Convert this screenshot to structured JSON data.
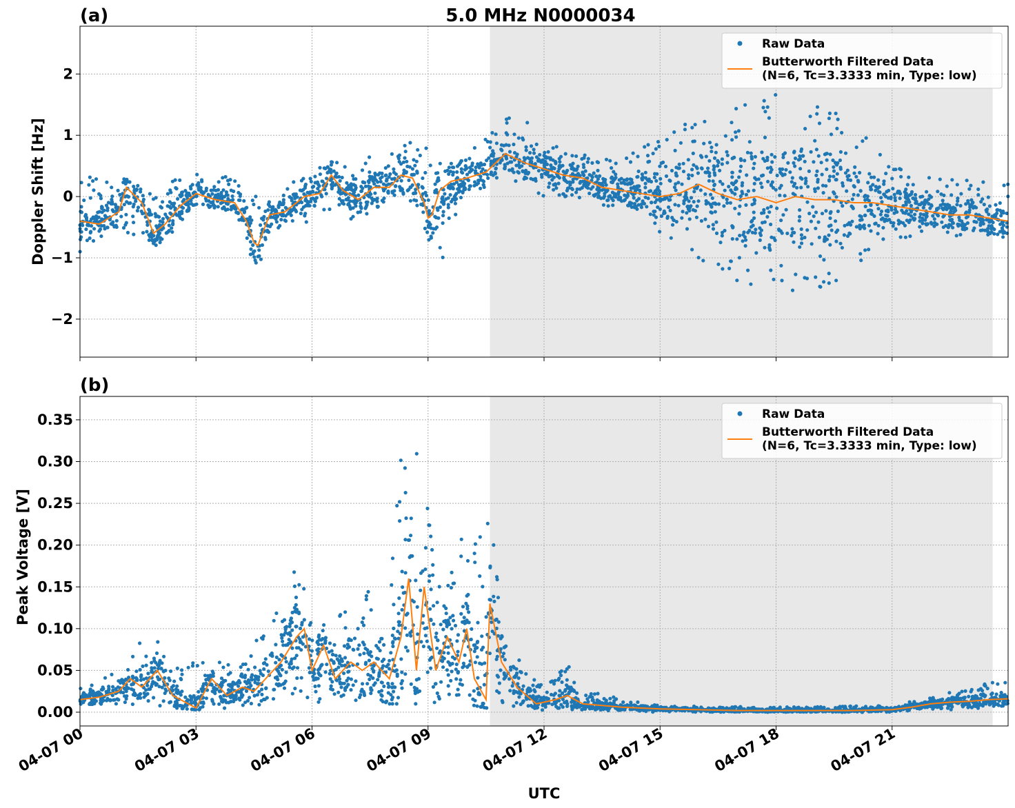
{
  "figure": {
    "title": "5.0 MHz N0000034",
    "xlabel": "UTC",
    "x_tick_labels": [
      "04-07 00",
      "04-07 03",
      "04-07 06",
      "04-07 09",
      "04-07 12",
      "04-07 15",
      "04-07 18",
      "04-07 21"
    ],
    "x_range_hours": [
      0,
      24
    ],
    "shaded_interval_hours": [
      10.6,
      23.6
    ],
    "colors": {
      "raw": "#1f77b4",
      "filtered": "#ff7f0e",
      "shade": "#e8e8e8",
      "grid": "#b0b0b0"
    },
    "legend": {
      "raw_label": "Raw Data",
      "filtered_label_line1": "Butterworth Filtered Data",
      "filtered_label_line2": "(N=6, Tc=3.3333 min, Type: low)",
      "placement": "upper right"
    }
  },
  "chart_data": [
    {
      "type": "scatter",
      "panel_label": "(a)",
      "ylabel": "Doppler Shift [Hz]",
      "ylim": [
        -2.62,
        2.78
      ],
      "yticks": [
        -2,
        -1,
        0,
        1,
        2
      ],
      "ytick_labels": [
        "−2",
        "−1",
        "0",
        "1",
        "2"
      ],
      "grid": true,
      "series": [
        {
          "name": "Butterworth Filtered Data",
          "type": "line",
          "x_hours": [
            0,
            0.5,
            1.0,
            1.2,
            1.6,
            1.9,
            2.2,
            2.6,
            3.0,
            3.5,
            4.0,
            4.3,
            4.5,
            4.6,
            4.9,
            5.3,
            5.8,
            6.2,
            6.5,
            6.8,
            7.2,
            7.6,
            8.0,
            8.3,
            8.6,
            8.9,
            9.0,
            9.1,
            9.3,
            9.6,
            10.0,
            10.5,
            11.0,
            11.5,
            12.0,
            12.5,
            13.0,
            13.5,
            14.0,
            14.5,
            15.0,
            15.5,
            16.0,
            16.5,
            17.0,
            17.5,
            18.0,
            18.5,
            19.0,
            19.5,
            20.0,
            20.5,
            21.0,
            21.5,
            22.0,
            22.5,
            23.0,
            23.5,
            24.0
          ],
          "y": [
            -0.4,
            -0.45,
            -0.25,
            0.15,
            -0.1,
            -0.6,
            -0.45,
            -0.15,
            0.05,
            -0.05,
            -0.1,
            -0.4,
            -0.75,
            -0.8,
            -0.3,
            -0.25,
            0.0,
            0.05,
            0.35,
            0.1,
            -0.05,
            0.15,
            0.15,
            0.35,
            0.3,
            -0.1,
            -0.35,
            -0.3,
            0.1,
            0.25,
            0.3,
            0.4,
            0.7,
            0.55,
            0.45,
            0.35,
            0.3,
            0.15,
            0.1,
            0.05,
            0.0,
            0.05,
            0.2,
            0.05,
            -0.05,
            0.0,
            -0.1,
            0.0,
            -0.05,
            -0.05,
            -0.1,
            -0.1,
            -0.15,
            -0.2,
            -0.25,
            -0.3,
            -0.3,
            -0.35,
            -0.4
          ]
        }
      ],
      "raw_data_envelope": {
        "name": "Raw Data",
        "x_hours": [
          0,
          1,
          2,
          3,
          4,
          4.6,
          5,
          6,
          6.5,
          7,
          8,
          8.4,
          9,
          9.2,
          10,
          10.6,
          11,
          11.5,
          12,
          13,
          14,
          15,
          16,
          17,
          18,
          19,
          19.5,
          20,
          21,
          22,
          23,
          24
        ],
        "y_low": [
          -0.9,
          -0.6,
          -0.8,
          -0.3,
          -0.3,
          -1.3,
          -0.6,
          -0.4,
          -0.2,
          -0.4,
          -0.2,
          -0.1,
          -0.6,
          -1.6,
          0.0,
          0.2,
          0.3,
          0.2,
          0.0,
          -0.1,
          -0.2,
          -0.6,
          -1.0,
          -1.4,
          -1.6,
          -1.6,
          -1.5,
          -1.2,
          -0.7,
          -0.6,
          -0.7,
          -0.7
        ],
        "y_high": [
          0.4,
          0.3,
          0.2,
          0.4,
          0.3,
          0.0,
          0.1,
          0.4,
          0.6,
          0.6,
          0.7,
          1.2,
          0.9,
          0.5,
          0.8,
          1.0,
          1.3,
          1.3,
          0.9,
          0.7,
          0.6,
          1.0,
          1.4,
          1.5,
          1.7,
          1.6,
          1.5,
          1.2,
          0.5,
          0.3,
          0.3,
          0.3
        ]
      }
    },
    {
      "type": "scatter",
      "panel_label": "(b)",
      "ylabel": "Peak Voltage [V]",
      "ylim": [
        -0.0165,
        0.378
      ],
      "yticks": [
        0.0,
        0.05,
        0.1,
        0.15,
        0.2,
        0.25,
        0.3,
        0.35
      ],
      "ytick_labels": [
        "0.00",
        "0.05",
        "0.10",
        "0.15",
        "0.20",
        "0.25",
        "0.30",
        "0.35"
      ],
      "grid": true,
      "series": [
        {
          "name": "Butterworth Filtered Data",
          "type": "line",
          "x_hours": [
            0,
            0.5,
            1.0,
            1.3,
            1.6,
            2.0,
            2.4,
            2.8,
            3.0,
            3.4,
            3.8,
            4.2,
            4.5,
            4.8,
            5.2,
            5.6,
            5.8,
            6.0,
            6.3,
            6.6,
            7.0,
            7.3,
            7.6,
            8.0,
            8.3,
            8.5,
            8.7,
            8.9,
            9.2,
            9.5,
            9.8,
            10.0,
            10.2,
            10.5,
            10.6,
            10.9,
            11.3,
            11.8,
            12.3,
            12.6,
            13.0,
            13.5,
            14.0,
            15.0,
            16.0,
            17.0,
            18.0,
            19.0,
            20.0,
            21.0,
            21.5,
            22.0,
            22.5,
            23.0,
            23.5,
            24.0
          ],
          "y": [
            0.015,
            0.018,
            0.025,
            0.04,
            0.03,
            0.05,
            0.02,
            0.01,
            0.005,
            0.04,
            0.02,
            0.03,
            0.025,
            0.04,
            0.06,
            0.09,
            0.1,
            0.05,
            0.08,
            0.04,
            0.06,
            0.05,
            0.06,
            0.04,
            0.09,
            0.16,
            0.05,
            0.15,
            0.05,
            0.09,
            0.06,
            0.1,
            0.04,
            0.015,
            0.13,
            0.06,
            0.03,
            0.01,
            0.015,
            0.02,
            0.01,
            0.008,
            0.006,
            0.004,
            0.003,
            0.002,
            0.002,
            0.002,
            0.002,
            0.003,
            0.006,
            0.01,
            0.012,
            0.013,
            0.015,
            0.016
          ]
        }
      ],
      "raw_data_envelope": {
        "name": "Raw Data",
        "x_hours": [
          0,
          1,
          1.7,
          2.5,
          3,
          4,
          5,
          5.6,
          6,
          7,
          8,
          8.4,
          8.9,
          9.5,
          10,
          10.5,
          10.6,
          11,
          11.5,
          12,
          12.6,
          13,
          14,
          15,
          18,
          21,
          22,
          23,
          24
        ],
        "y_low": [
          0.005,
          0.008,
          0.01,
          0.005,
          0.003,
          0.005,
          0.01,
          0.02,
          0.01,
          0.01,
          0.01,
          0.01,
          0.01,
          0.01,
          0.01,
          0.005,
          0.005,
          0.004,
          0.003,
          0.002,
          0.002,
          0.002,
          0.001,
          0.0,
          0.0,
          0.0,
          0.002,
          0.004,
          0.005
        ],
        "y_high": [
          0.03,
          0.05,
          0.1,
          0.06,
          0.06,
          0.06,
          0.12,
          0.18,
          0.12,
          0.14,
          0.15,
          0.36,
          0.29,
          0.19,
          0.22,
          0.25,
          0.25,
          0.1,
          0.05,
          0.03,
          0.06,
          0.03,
          0.015,
          0.008,
          0.006,
          0.008,
          0.02,
          0.03,
          0.04
        ]
      }
    }
  ]
}
